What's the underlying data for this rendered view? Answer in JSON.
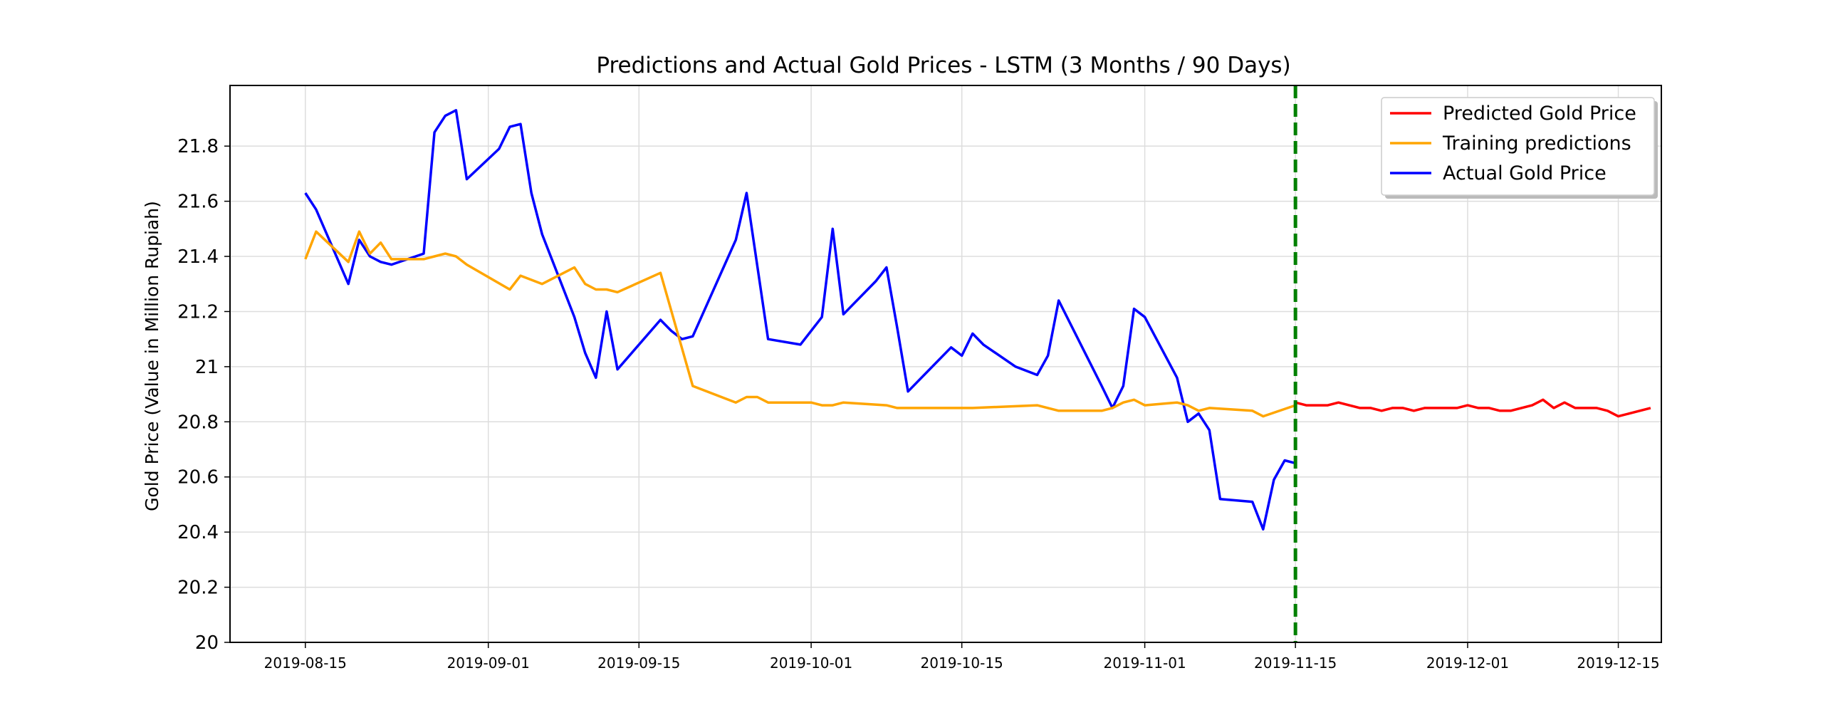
{
  "chart_data": {
    "type": "line",
    "title": "Predictions and Actual Gold Prices - LSTM (3 Months / 90 Days)",
    "xlabel": "",
    "ylabel": "Gold Price (Value in Million Rupiah)",
    "x_type": "date",
    "xlim": [
      "2019-08-08",
      "2019-12-19"
    ],
    "ylim": [
      20,
      22.02
    ],
    "x_ticks": [
      "2019-08-15",
      "2019-09-01",
      "2019-09-15",
      "2019-10-01",
      "2019-10-15",
      "2019-11-01",
      "2019-11-15",
      "2019-12-01",
      "2019-12-15"
    ],
    "y_ticks": [
      20,
      20.2,
      20.4,
      20.6,
      20.8,
      21,
      21.2,
      21.4,
      21.6,
      21.8
    ],
    "y_tick_labels": [
      "20",
      "20.2",
      "20.4",
      "20.6",
      "20.8",
      "21",
      "21.2",
      "21.4",
      "21.6",
      "21.8"
    ],
    "grid": true,
    "legend_position": "top-right",
    "vline": {
      "x": "2019-11-15",
      "color": "#008000",
      "style": "dashed"
    },
    "series": [
      {
        "name": "Actual Gold Price",
        "color": "#0000ff",
        "points": [
          [
            "2019-08-15",
            21.63
          ],
          [
            "2019-08-16",
            21.57
          ],
          [
            "2019-08-19",
            21.3
          ],
          [
            "2019-08-20",
            21.46
          ],
          [
            "2019-08-21",
            21.4
          ],
          [
            "2019-08-22",
            21.38
          ],
          [
            "2019-08-23",
            21.37
          ],
          [
            "2019-08-26",
            21.41
          ],
          [
            "2019-08-27",
            21.85
          ],
          [
            "2019-08-28",
            21.91
          ],
          [
            "2019-08-29",
            21.93
          ],
          [
            "2019-08-30",
            21.68
          ],
          [
            "2019-09-02",
            21.79
          ],
          [
            "2019-09-03",
            21.87
          ],
          [
            "2019-09-04",
            21.88
          ],
          [
            "2019-09-05",
            21.63
          ],
          [
            "2019-09-06",
            21.48
          ],
          [
            "2019-09-09",
            21.18
          ],
          [
            "2019-09-10",
            21.05
          ],
          [
            "2019-09-11",
            20.96
          ],
          [
            "2019-09-12",
            21.2
          ],
          [
            "2019-09-13",
            20.99
          ],
          [
            "2019-09-17",
            21.17
          ],
          [
            "2019-09-18",
            21.13
          ],
          [
            "2019-09-19",
            21.1
          ],
          [
            "2019-09-20",
            21.11
          ],
          [
            "2019-09-24",
            21.46
          ],
          [
            "2019-09-25",
            21.63
          ],
          [
            "2019-09-27",
            21.1
          ],
          [
            "2019-09-30",
            21.08
          ],
          [
            "2019-10-02",
            21.18
          ],
          [
            "2019-10-03",
            21.5
          ],
          [
            "2019-10-04",
            21.19
          ],
          [
            "2019-10-07",
            21.31
          ],
          [
            "2019-10-08",
            21.36
          ],
          [
            "2019-10-09",
            21.14
          ],
          [
            "2019-10-10",
            20.91
          ],
          [
            "2019-10-14",
            21.07
          ],
          [
            "2019-10-15",
            21.04
          ],
          [
            "2019-10-16",
            21.12
          ],
          [
            "2019-10-17",
            21.08
          ],
          [
            "2019-10-20",
            21.0
          ],
          [
            "2019-10-22",
            20.97
          ],
          [
            "2019-10-23",
            21.04
          ],
          [
            "2019-10-24",
            21.24
          ],
          [
            "2019-10-28",
            20.93
          ],
          [
            "2019-10-29",
            20.85
          ],
          [
            "2019-10-30",
            20.93
          ],
          [
            "2019-10-31",
            21.21
          ],
          [
            "2019-11-01",
            21.18
          ],
          [
            "2019-11-04",
            20.96
          ],
          [
            "2019-11-05",
            20.8
          ],
          [
            "2019-11-06",
            20.83
          ],
          [
            "2019-11-07",
            20.77
          ],
          [
            "2019-11-08",
            20.52
          ],
          [
            "2019-11-11",
            20.51
          ],
          [
            "2019-11-12",
            20.41
          ],
          [
            "2019-11-13",
            20.59
          ],
          [
            "2019-11-14",
            20.66
          ],
          [
            "2019-11-15",
            20.65
          ]
        ]
      },
      {
        "name": "Training predictions",
        "color": "#ffa500",
        "points": [
          [
            "2019-08-15",
            21.39
          ],
          [
            "2019-08-16",
            21.49
          ],
          [
            "2019-08-19",
            21.38
          ],
          [
            "2019-08-20",
            21.49
          ],
          [
            "2019-08-21",
            21.41
          ],
          [
            "2019-08-22",
            21.45
          ],
          [
            "2019-08-23",
            21.39
          ],
          [
            "2019-08-26",
            21.39
          ],
          [
            "2019-08-27",
            21.4
          ],
          [
            "2019-08-28",
            21.41
          ],
          [
            "2019-08-29",
            21.4
          ],
          [
            "2019-08-30",
            21.37
          ],
          [
            "2019-09-03",
            21.28
          ],
          [
            "2019-09-04",
            21.33
          ],
          [
            "2019-09-06",
            21.3
          ],
          [
            "2019-09-09",
            21.36
          ],
          [
            "2019-09-10",
            21.3
          ],
          [
            "2019-09-11",
            21.28
          ],
          [
            "2019-09-12",
            21.28
          ],
          [
            "2019-09-13",
            21.27
          ],
          [
            "2019-09-17",
            21.34
          ],
          [
            "2019-09-20",
            20.93
          ],
          [
            "2019-09-24",
            20.87
          ],
          [
            "2019-09-25",
            20.89
          ],
          [
            "2019-09-26",
            20.89
          ],
          [
            "2019-09-27",
            20.87
          ],
          [
            "2019-10-01",
            20.87
          ],
          [
            "2019-10-02",
            20.86
          ],
          [
            "2019-10-03",
            20.86
          ],
          [
            "2019-10-04",
            20.87
          ],
          [
            "2019-10-08",
            20.86
          ],
          [
            "2019-10-09",
            20.85
          ],
          [
            "2019-10-14",
            20.85
          ],
          [
            "2019-10-16",
            20.85
          ],
          [
            "2019-10-22",
            20.86
          ],
          [
            "2019-10-23",
            20.85
          ],
          [
            "2019-10-24",
            20.84
          ],
          [
            "2019-10-28",
            20.84
          ],
          [
            "2019-10-29",
            20.85
          ],
          [
            "2019-10-30",
            20.87
          ],
          [
            "2019-10-31",
            20.88
          ],
          [
            "2019-11-01",
            20.86
          ],
          [
            "2019-11-04",
            20.87
          ],
          [
            "2019-11-05",
            20.86
          ],
          [
            "2019-11-06",
            20.84
          ],
          [
            "2019-11-07",
            20.85
          ],
          [
            "2019-11-11",
            20.84
          ],
          [
            "2019-11-12",
            20.82
          ],
          [
            "2019-11-15",
            20.86
          ]
        ]
      },
      {
        "name": "Predicted Gold Price",
        "color": "#ff0000",
        "points": [
          [
            "2019-11-15",
            20.87
          ],
          [
            "2019-11-16",
            20.86
          ],
          [
            "2019-11-17",
            20.86
          ],
          [
            "2019-11-18",
            20.86
          ],
          [
            "2019-11-19",
            20.87
          ],
          [
            "2019-11-20",
            20.86
          ],
          [
            "2019-11-21",
            20.85
          ],
          [
            "2019-11-22",
            20.85
          ],
          [
            "2019-11-23",
            20.84
          ],
          [
            "2019-11-24",
            20.85
          ],
          [
            "2019-11-25",
            20.85
          ],
          [
            "2019-11-26",
            20.84
          ],
          [
            "2019-11-27",
            20.85
          ],
          [
            "2019-11-28",
            20.85
          ],
          [
            "2019-11-29",
            20.85
          ],
          [
            "2019-11-30",
            20.85
          ],
          [
            "2019-12-01",
            20.86
          ],
          [
            "2019-12-02",
            20.85
          ],
          [
            "2019-12-03",
            20.85
          ],
          [
            "2019-12-04",
            20.84
          ],
          [
            "2019-12-05",
            20.84
          ],
          [
            "2019-12-06",
            20.85
          ],
          [
            "2019-12-07",
            20.86
          ],
          [
            "2019-12-08",
            20.88
          ],
          [
            "2019-12-09",
            20.85
          ],
          [
            "2019-12-10",
            20.87
          ],
          [
            "2019-12-11",
            20.85
          ],
          [
            "2019-12-12",
            20.85
          ],
          [
            "2019-12-13",
            20.85
          ],
          [
            "2019-12-14",
            20.84
          ],
          [
            "2019-12-15",
            20.82
          ],
          [
            "2019-12-16",
            20.83
          ],
          [
            "2019-12-17",
            20.84
          ],
          [
            "2019-12-18",
            20.85
          ]
        ]
      }
    ]
  }
}
